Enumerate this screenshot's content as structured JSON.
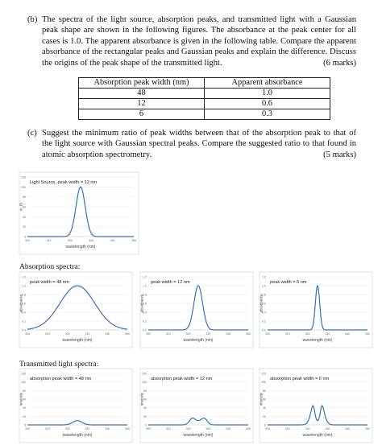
{
  "part_b": {
    "label": "(b)",
    "text": "The spectra of the light source, absorption peaks, and transmitted light with a Gaussian peak shape are shown in the following figures. The absorbance at the peak center for all cases is 1.0. The apparent absorbance is given in the following table. Compare the apparent absorbance of the rectangular peaks and Gaussian peaks and explain the difference. Discuss the origins of the peak shape of the transmitted light.",
    "marks": "(6 marks)"
  },
  "table": {
    "headers": [
      "Absorption peak width (nm)",
      "Apparent absorbance"
    ],
    "rows": [
      [
        "48",
        "1.0"
      ],
      [
        "12",
        "0.6"
      ],
      [
        "6",
        "0.3"
      ]
    ]
  },
  "part_c": {
    "label": "(c)",
    "text": "Suggest the minimum ratio of peak widths between that of the absorption peak to that of the light source with Gaussian spectral peaks. Compare the suggested ratio to that found in atomic absorption spectrometry.",
    "marks": "(5 marks)"
  },
  "sections": {
    "absorption": "Absorption spectra:",
    "transmitted": "Transmitted light spectra:"
  },
  "chart_data": [
    {
      "type": "line",
      "title": "Light Source, peak width = 12 nm",
      "xlabel": "wavelength (nm)",
      "ylabel": "in. (l)",
      "xlim": [
        300,
        350
      ],
      "ylim": [
        0,
        120
      ],
      "xticks": [
        "300",
        "310",
        "320",
        "330",
        "340",
        "350"
      ],
      "yticks": [
        "0",
        "20",
        "40",
        "60",
        "80",
        "100",
        "120"
      ],
      "series": [
        {
          "shape": "gaussian",
          "center": 325,
          "fwhm": 5.1,
          "peak": 100
        }
      ],
      "color": "#2e75b6"
    },
    {
      "type": "line",
      "title": "peak width = 48 nm",
      "xlabel": "wavelength (nm)",
      "ylabel": "absorbance",
      "xlim": [
        300,
        350
      ],
      "ylim": [
        0,
        1.2
      ],
      "xticks": [
        "300",
        "310",
        "320",
        "330",
        "340",
        "350"
      ],
      "yticks": [
        "0.0",
        "0.2",
        "0.4",
        "0.6",
        "0.8",
        "1.0",
        "1.2"
      ],
      "series": [
        {
          "shape": "gaussian",
          "center": 325,
          "fwhm": 20.4,
          "peak": 1.0
        }
      ],
      "color": "#2e75b6"
    },
    {
      "type": "line",
      "title": "peak width = 12 nm",
      "xlabel": "wavelength (nm)",
      "ylabel": "absorbance",
      "xlim": [
        300,
        350
      ],
      "ylim": [
        0,
        1.2
      ],
      "xticks": [
        "300",
        "310",
        "320",
        "330",
        "340",
        "350"
      ],
      "yticks": [
        "0.0",
        "0.2",
        "0.4",
        "0.6",
        "0.8",
        "1.0",
        "1.2"
      ],
      "series": [
        {
          "shape": "gaussian",
          "center": 325,
          "fwhm": 5.1,
          "peak": 1.0
        }
      ],
      "color": "#2e75b6"
    },
    {
      "type": "line",
      "title": "peak width = 6 nm",
      "xlabel": "wavelength (nm)",
      "ylabel": "absorbance",
      "xlim": [
        300,
        350
      ],
      "ylim": [
        0,
        1.2
      ],
      "xticks": [
        "300",
        "310",
        "320",
        "330",
        "340",
        "350"
      ],
      "yticks": [
        "0.0",
        "0.2",
        "0.4",
        "0.6",
        "0.8",
        "1.0",
        "1.2"
      ],
      "series": [
        {
          "shape": "gaussian",
          "center": 325,
          "fwhm": 2.55,
          "peak": 1.0
        }
      ],
      "color": "#2e75b6"
    },
    {
      "type": "line",
      "title": "absorption peak width = 48 nm",
      "xlabel": "wavelength (nm)",
      "ylabel": "intensity",
      "xlim": [
        300,
        350
      ],
      "ylim": [
        0,
        120
      ],
      "xticks": [
        "300",
        "310",
        "320",
        "330",
        "340",
        "350"
      ],
      "yticks": [
        "0",
        "20",
        "40",
        "60",
        "80",
        "100",
        "120"
      ],
      "series": [
        {
          "shape": "transmitted",
          "center": 325,
          "source_fwhm": 5.1,
          "abs_fwhm": 20.4,
          "peak": 100
        }
      ],
      "color": "#2e75b6"
    },
    {
      "type": "line",
      "title": "absorption peak width = 12 nm",
      "xlabel": "wavelength (nm)",
      "ylabel": "intensity",
      "xlim": [
        300,
        350
      ],
      "ylim": [
        0,
        120
      ],
      "xticks": [
        "300",
        "310",
        "320",
        "330",
        "340",
        "350"
      ],
      "yticks": [
        "0",
        "20",
        "40",
        "60",
        "80",
        "100",
        "120"
      ],
      "series": [
        {
          "shape": "transmitted",
          "center": 325,
          "source_fwhm": 5.1,
          "abs_fwhm": 5.1,
          "peak": 100
        }
      ],
      "color": "#2e75b6"
    },
    {
      "type": "line",
      "title": "absorption peak width = 6 nm",
      "xlabel": "wavelength (nm)",
      "ylabel": "intensity",
      "xlim": [
        300,
        350
      ],
      "ylim": [
        0,
        120
      ],
      "xticks": [
        "300",
        "310",
        "320",
        "330",
        "340",
        "350"
      ],
      "yticks": [
        "0",
        "20",
        "40",
        "60",
        "80",
        "100",
        "120"
      ],
      "series": [
        {
          "shape": "transmitted",
          "center": 325,
          "source_fwhm": 5.1,
          "abs_fwhm": 2.55,
          "peak": 100
        }
      ],
      "color": "#2e75b6"
    }
  ]
}
